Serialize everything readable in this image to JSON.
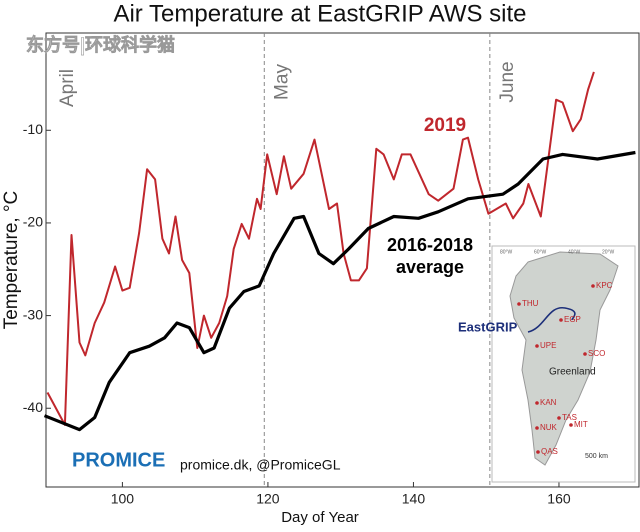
{
  "chart_data": {
    "type": "line",
    "title": "Air Temperature at EastGRIP AWS site",
    "xlabel": "Day of Year",
    "ylabel": "Temperature, °C",
    "watermark": "东方号|环球科学猫",
    "months": [
      "April",
      "May",
      "June"
    ],
    "month_boundaries": [
      119.5,
      150.5
    ],
    "xlim": [
      89.5,
      171
    ],
    "ylim": [
      -48.5,
      0.5
    ],
    "xticks": [
      100,
      120,
      140,
      160
    ],
    "yticks": [
      -10,
      -20,
      -30,
      -40
    ],
    "series": [
      {
        "name": "2019",
        "color": "#c0272d",
        "x": [
          89.7,
          92.1,
          93,
          94.1,
          94.9,
          96.2,
          97.5,
          99,
          100,
          101,
          102.3,
          103.4,
          104.5,
          105.5,
          106.4,
          107.3,
          108.2,
          109.2,
          110.3,
          111.2,
          112.2,
          113.3,
          114.4,
          115.3,
          116.4,
          117.4,
          118.5,
          119,
          119.9,
          121.2,
          122.2,
          123.2,
          124.9,
          126.4,
          128.4,
          129.5,
          130.4,
          131.4,
          132.5,
          133.6,
          134.9,
          135.9,
          137.3,
          138.4,
          139.6,
          142.1,
          143.4,
          145.5,
          146.8,
          147.5,
          148.9,
          150.3,
          152.7,
          153.7,
          155.1,
          155.8,
          157.5,
          159.6,
          160.5,
          161.9,
          163,
          164,
          164.8
        ],
        "values": [
          -38.3,
          -41.8,
          -21.3,
          -32.9,
          -34.3,
          -30.8,
          -28.6,
          -24.7,
          -27.3,
          -27.0,
          -21.1,
          -14.2,
          -15.3,
          -21.7,
          -23.3,
          -19.3,
          -24.0,
          -25.4,
          -33.5,
          -30.0,
          -32.4,
          -30.8,
          -27.9,
          -22.8,
          -20.1,
          -21.7,
          -17.4,
          -18.5,
          -12.6,
          -16.9,
          -12.8,
          -16.3,
          -14.7,
          -11.0,
          -18.5,
          -17.9,
          -23.3,
          -26.2,
          -26.2,
          -24.9,
          -12.0,
          -12.6,
          -15.3,
          -12.6,
          -12.6,
          -16.9,
          -17.6,
          -16.3,
          -11.0,
          -10.8,
          -15.3,
          -19.0,
          -17.9,
          -19.5,
          -17.9,
          -15.8,
          -19.3,
          -6.7,
          -7.0,
          -10.1,
          -8.8,
          -5.6,
          -3.7
        ]
      },
      {
        "name": "2016-2018 average",
        "color": "#000000",
        "x": [
          89.3,
          94.1,
          96.2,
          98.2,
          101,
          103.7,
          105.8,
          107.5,
          109.2,
          111.2,
          112.6,
          114.7,
          116.7,
          118.8,
          120.8,
          123.6,
          124.9,
          127,
          129,
          131.1,
          133.8,
          137.3,
          140.7,
          143.4,
          147.5,
          152.3,
          154.4,
          157.8,
          160.5,
          165.3,
          170.5
        ],
        "values": [
          -40.8,
          -42.3,
          -41.0,
          -37.2,
          -34.0,
          -33.3,
          -32.4,
          -30.8,
          -31.3,
          -34.0,
          -33.5,
          -29.2,
          -27.4,
          -26.8,
          -23.3,
          -19.5,
          -19.3,
          -23.3,
          -24.4,
          -22.8,
          -20.6,
          -19.3,
          -19.5,
          -18.8,
          -17.4,
          -16.9,
          -15.8,
          -13.1,
          -12.6,
          -13.1,
          -12.4
        ]
      }
    ],
    "logo": "PROMICE",
    "credit": "promice.dk, @PromiceGL",
    "map": {
      "traverse": "EastGRIP",
      "region": "Greenland",
      "scale": "500 km",
      "stations": [
        "THU",
        "KPC",
        "EGP",
        "UPE",
        "SCO",
        "KAN",
        "NUK",
        "TAS",
        "MIT",
        "QAS"
      ],
      "lon_labels": [
        "80°W",
        "60°W",
        "40°W",
        "20°W"
      ]
    }
  }
}
